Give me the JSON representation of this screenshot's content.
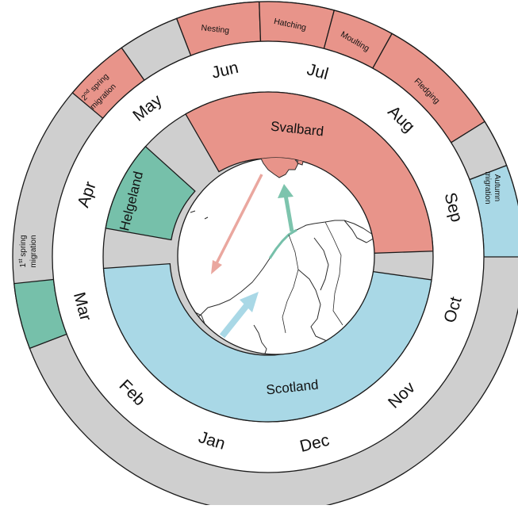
{
  "colors": {
    "breeding": "#e8948a",
    "wintering": "#a9d8e6",
    "stopover": "#76c0aa",
    "inactive": "#cfcfcf",
    "outline": "#1a1a1a"
  },
  "months": [
    "Jan",
    "Feb",
    "Mar",
    "Apr",
    "May",
    "Jun",
    "Jul",
    "Aug",
    "Sep",
    "Oct",
    "Nov",
    "Dec"
  ],
  "locations": {
    "svalbard": "Svalbard",
    "helgeland": "Helgeland",
    "scotland": "Scotland"
  },
  "events": {
    "nesting": "Nesting",
    "hatching": "Hatching",
    "moulting": "Moulting",
    "fledging": "Fledging",
    "autumn_migration_1": "Autumn",
    "autumn_migration_2": "migration",
    "spring2_num": "2",
    "spring2_sup": "nd",
    "spring2_rest": " spring",
    "spring2_line2": "migration",
    "spring1_num": "1",
    "spring1_sup": "st",
    "spring1_rest": " spring",
    "spring1_line2": "migration"
  },
  "arrow_colors": {
    "southbound": "#eaa79f",
    "northbound_stopover": "#7dc4ad",
    "northbound_scotland": "#a9d8e6"
  }
}
